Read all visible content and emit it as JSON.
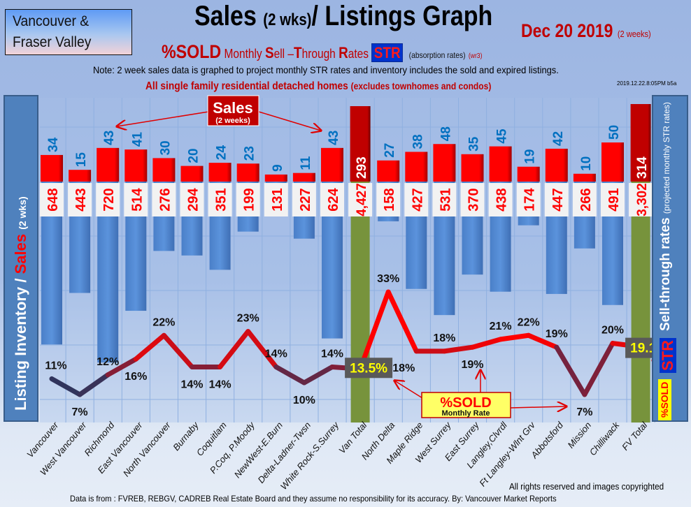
{
  "header": {
    "region_line1": "Vancouver &",
    "region_line2": "Fraser Valley",
    "title_main": "Sales",
    "title_sub": "(2 wks)",
    "title_rest": "/ Listings Graph",
    "date": "Dec 20 2019",
    "date_note": "(2 weeks)",
    "sold_label": "%SOLD",
    "sub_monthly": "Monthly ",
    "sub_S": "S",
    "sub_ell": "ell –",
    "sub_T": "T",
    "sub_hrough": "hrough ",
    "sub_R": "R",
    "sub_ates": "ates",
    "str_badge": "STR",
    "absorption": "(absorption rates)",
    "version": "(wr3)",
    "note": "Note: 2 week sales data is graphed to project monthly STR rates and inventory includes the sold and expired listings.",
    "homes": "All single family residential detached homes",
    "homes_note": "(excludes townhomes and condos)",
    "timestamp": "2019.12.22.8:05PM b5a"
  },
  "left_axis": {
    "label": "Listing Inventory / ",
    "sales": "Sales",
    "note": "(2  wks)"
  },
  "right_axis": {
    "label": "Sell-through rates",
    "note": "(projected monthly STR rates)",
    "str": "STR",
    "sold": "%SOLD"
  },
  "annotations": {
    "sales": "Sales",
    "sales_note": "(2 weeks)",
    "sold": "%SOLD",
    "sold_note": "Monthly Rate"
  },
  "footer": {
    "rights": "All rights reserved and  images copyrighted",
    "source": "Data is from : FVREB, REBGV, CADREB Real Estate Board and they assume no responsibility for its accuracy. By: Vancouver Market Reports"
  },
  "colors": {
    "sales": "#ff0000",
    "sales_total": "#c00000",
    "inventory": "#558ed5",
    "inventory_total": "#77933c",
    "line_high": "#ff0000",
    "line_low": "#1f3864",
    "sales_label": "#0070c0"
  },
  "chart_data": {
    "type": "bar+line",
    "title": "Sales (2 wks)/ Listings Graph",
    "categories": [
      "Vancouver",
      "West Vancouver",
      "Richmond",
      "East Vancouver",
      "North Vancouver",
      "Burnaby",
      "Coquitlam",
      "P.Coq, P.Moody",
      "NewWest-E.Burn",
      "Delta-Ladner-Twsn",
      "White Rock-S.Surrey",
      "Van Total",
      "North Delta",
      "Maple Ridge",
      "West Surrey",
      "East Surrey",
      "Langley,Clvrdl",
      "Ft Langley-Wlnt Grv",
      "Abbotsford",
      "Mission",
      "Chilliwack",
      "FV Total"
    ],
    "is_total": [
      false,
      false,
      false,
      false,
      false,
      false,
      false,
      false,
      false,
      false,
      false,
      true,
      false,
      false,
      false,
      false,
      false,
      false,
      false,
      false,
      false,
      true
    ],
    "series": [
      {
        "name": "Sales (2 wks)",
        "type": "bar",
        "values": [
          34,
          15,
          43,
          41,
          30,
          20,
          24,
          23,
          9,
          11,
          43,
          293,
          27,
          38,
          48,
          35,
          45,
          19,
          42,
          10,
          50,
          314
        ]
      },
      {
        "name": "Listing Inventory",
        "type": "bar",
        "values": [
          648,
          443,
          720,
          514,
          276,
          294,
          351,
          199,
          131,
          227,
          624,
          4427,
          158,
          427,
          531,
          370,
          438,
          174,
          447,
          266,
          491,
          3302
        ]
      },
      {
        "name": "%SOLD Monthly Sell-Through Rate",
        "type": "line",
        "unit": "%",
        "values": [
          11,
          7,
          12,
          16,
          22,
          14,
          14,
          23,
          14,
          10,
          14,
          13.5,
          33,
          18,
          18,
          19,
          21,
          22,
          19,
          7,
          20,
          19.1
        ]
      }
    ],
    "xlabel": "",
    "ylabel_left": "Listing Inventory / Sales (2 wks)",
    "ylabel_right": "Sell-through rates (projected monthly STR rates)",
    "legend": "none"
  }
}
